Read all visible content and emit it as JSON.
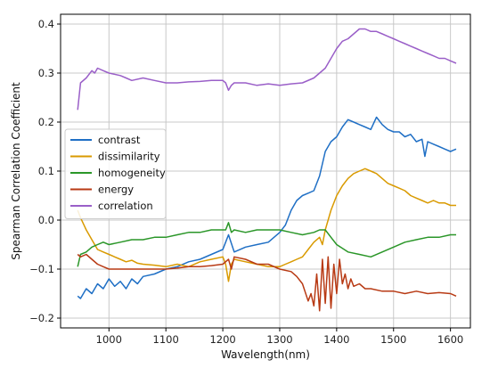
{
  "chart_data": {
    "type": "line",
    "xlabel": "Wavelength(nm)",
    "ylabel": "Spearman Correlation Coefficient",
    "xlim": [
      915,
      1635
    ],
    "ylim": [
      -0.22,
      0.42
    ],
    "x_ticks": [
      1000,
      1100,
      1200,
      1300,
      1400,
      1500,
      1600
    ],
    "y_ticks": [
      -0.2,
      -0.1,
      0.0,
      0.1,
      0.2,
      0.3,
      0.4
    ],
    "x_tick_labels": [
      "1000",
      "1100",
      "1200",
      "1300",
      "1400",
      "1500",
      "1600"
    ],
    "y_tick_labels": [
      "−0.2",
      "−0.1",
      "0.0",
      "0.1",
      "0.2",
      "0.3",
      "0.4"
    ],
    "grid": true,
    "legend_position": "center-left",
    "series": [
      {
        "name": "contrast",
        "color": "#1f6fc5",
        "x": [
          945,
          950,
          960,
          970,
          980,
          990,
          1000,
          1010,
          1020,
          1030,
          1040,
          1050,
          1060,
          1080,
          1100,
          1120,
          1140,
          1160,
          1180,
          1200,
          1210,
          1220,
          1240,
          1260,
          1280,
          1300,
          1310,
          1320,
          1330,
          1340,
          1350,
          1360,
          1370,
          1380,
          1390,
          1400,
          1410,
          1420,
          1430,
          1440,
          1450,
          1460,
          1470,
          1480,
          1490,
          1500,
          1510,
          1520,
          1530,
          1540,
          1550,
          1555,
          1560,
          1570,
          1580,
          1590,
          1600,
          1610
        ],
        "y": [
          -0.155,
          -0.16,
          -0.14,
          -0.15,
          -0.13,
          -0.14,
          -0.12,
          -0.135,
          -0.125,
          -0.14,
          -0.12,
          -0.13,
          -0.115,
          -0.11,
          -0.1,
          -0.095,
          -0.085,
          -0.08,
          -0.07,
          -0.06,
          -0.03,
          -0.065,
          -0.055,
          -0.05,
          -0.045,
          -0.025,
          -0.01,
          0.02,
          0.04,
          0.05,
          0.055,
          0.06,
          0.09,
          0.14,
          0.16,
          0.17,
          0.19,
          0.205,
          0.2,
          0.195,
          0.19,
          0.185,
          0.21,
          0.195,
          0.185,
          0.18,
          0.18,
          0.17,
          0.175,
          0.16,
          0.165,
          0.13,
          0.16,
          0.155,
          0.15,
          0.145,
          0.14,
          0.145
        ]
      },
      {
        "name": "dissimilarity",
        "color": "#d99a00",
        "x": [
          945,
          950,
          960,
          970,
          980,
          990,
          1000,
          1010,
          1020,
          1030,
          1040,
          1050,
          1060,
          1080,
          1100,
          1120,
          1140,
          1160,
          1180,
          1200,
          1205,
          1210,
          1215,
          1220,
          1240,
          1260,
          1280,
          1300,
          1310,
          1320,
          1330,
          1340,
          1350,
          1360,
          1370,
          1375,
          1380,
          1390,
          1400,
          1410,
          1420,
          1430,
          1440,
          1450,
          1460,
          1470,
          1480,
          1490,
          1500,
          1510,
          1520,
          1530,
          1540,
          1550,
          1560,
          1570,
          1580,
          1590,
          1600,
          1610
        ],
        "y": [
          0.02,
          0.005,
          -0.02,
          -0.04,
          -0.06,
          -0.065,
          -0.07,
          -0.075,
          -0.08,
          -0.085,
          -0.082,
          -0.088,
          -0.09,
          -0.092,
          -0.095,
          -0.09,
          -0.095,
          -0.085,
          -0.08,
          -0.075,
          -0.09,
          -0.125,
          -0.09,
          -0.08,
          -0.085,
          -0.09,
          -0.095,
          -0.095,
          -0.09,
          -0.085,
          -0.08,
          -0.075,
          -0.06,
          -0.045,
          -0.035,
          -0.05,
          -0.02,
          0.02,
          0.05,
          0.07,
          0.085,
          0.095,
          0.1,
          0.105,
          0.1,
          0.095,
          0.085,
          0.075,
          0.07,
          0.065,
          0.06,
          0.05,
          0.045,
          0.04,
          0.035,
          0.04,
          0.035,
          0.035,
          0.03,
          0.03
        ]
      },
      {
        "name": "homogeneity",
        "color": "#2a9628",
        "x": [
          945,
          950,
          960,
          970,
          980,
          990,
          1000,
          1020,
          1040,
          1060,
          1080,
          1100,
          1120,
          1140,
          1160,
          1180,
          1200,
          1205,
          1210,
          1215,
          1220,
          1240,
          1260,
          1280,
          1300,
          1320,
          1340,
          1360,
          1370,
          1380,
          1390,
          1400,
          1420,
          1440,
          1460,
          1480,
          1500,
          1520,
          1540,
          1560,
          1580,
          1600,
          1610
        ],
        "y": [
          -0.095,
          -0.07,
          -0.065,
          -0.055,
          -0.05,
          -0.045,
          -0.05,
          -0.045,
          -0.04,
          -0.04,
          -0.035,
          -0.035,
          -0.03,
          -0.025,
          -0.025,
          -0.02,
          -0.02,
          -0.02,
          -0.005,
          -0.025,
          -0.02,
          -0.025,
          -0.02,
          -0.02,
          -0.02,
          -0.025,
          -0.03,
          -0.025,
          -0.02,
          -0.02,
          -0.035,
          -0.05,
          -0.065,
          -0.07,
          -0.075,
          -0.065,
          -0.055,
          -0.045,
          -0.04,
          -0.035,
          -0.035,
          -0.03,
          -0.03
        ]
      },
      {
        "name": "energy",
        "color": "#b83a14",
        "x": [
          945,
          950,
          960,
          970,
          980,
          990,
          1000,
          1020,
          1040,
          1060,
          1080,
          1100,
          1120,
          1140,
          1160,
          1180,
          1200,
          1210,
          1215,
          1220,
          1240,
          1260,
          1280,
          1300,
          1320,
          1330,
          1340,
          1350,
          1355,
          1360,
          1365,
          1370,
          1375,
          1380,
          1385,
          1390,
          1395,
          1400,
          1405,
          1410,
          1415,
          1420,
          1425,
          1430,
          1440,
          1450,
          1460,
          1480,
          1500,
          1520,
          1540,
          1560,
          1580,
          1600,
          1610
        ],
        "y": [
          -0.07,
          -0.075,
          -0.07,
          -0.08,
          -0.09,
          -0.095,
          -0.1,
          -0.1,
          -0.1,
          -0.1,
          -0.1,
          -0.1,
          -0.098,
          -0.095,
          -0.095,
          -0.093,
          -0.09,
          -0.08,
          -0.1,
          -0.075,
          -0.08,
          -0.09,
          -0.09,
          -0.1,
          -0.105,
          -0.115,
          -0.13,
          -0.165,
          -0.15,
          -0.175,
          -0.11,
          -0.185,
          -0.08,
          -0.17,
          -0.075,
          -0.18,
          -0.09,
          -0.15,
          -0.08,
          -0.13,
          -0.11,
          -0.14,
          -0.12,
          -0.135,
          -0.13,
          -0.14,
          -0.14,
          -0.145,
          -0.145,
          -0.15,
          -0.145,
          -0.15,
          -0.148,
          -0.15,
          -0.155
        ]
      },
      {
        "name": "correlation",
        "color": "#9a5fc8",
        "x": [
          945,
          950,
          960,
          970,
          975,
          980,
          990,
          1000,
          1020,
          1030,
          1040,
          1060,
          1080,
          1100,
          1120,
          1140,
          1160,
          1180,
          1200,
          1205,
          1210,
          1215,
          1220,
          1240,
          1260,
          1280,
          1300,
          1320,
          1340,
          1360,
          1370,
          1380,
          1390,
          1400,
          1410,
          1420,
          1430,
          1440,
          1450,
          1460,
          1470,
          1480,
          1490,
          1500,
          1510,
          1520,
          1530,
          1540,
          1550,
          1560,
          1570,
          1580,
          1590,
          1600,
          1610
        ],
        "y": [
          0.225,
          0.28,
          0.29,
          0.305,
          0.3,
          0.31,
          0.305,
          0.3,
          0.295,
          0.29,
          0.285,
          0.29,
          0.285,
          0.28,
          0.28,
          0.282,
          0.283,
          0.285,
          0.285,
          0.28,
          0.265,
          0.275,
          0.28,
          0.28,
          0.275,
          0.278,
          0.275,
          0.278,
          0.28,
          0.29,
          0.3,
          0.31,
          0.33,
          0.35,
          0.365,
          0.37,
          0.38,
          0.39,
          0.39,
          0.385,
          0.385,
          0.38,
          0.375,
          0.37,
          0.365,
          0.36,
          0.355,
          0.35,
          0.345,
          0.34,
          0.335,
          0.33,
          0.33,
          0.325,
          0.32
        ]
      }
    ]
  }
}
